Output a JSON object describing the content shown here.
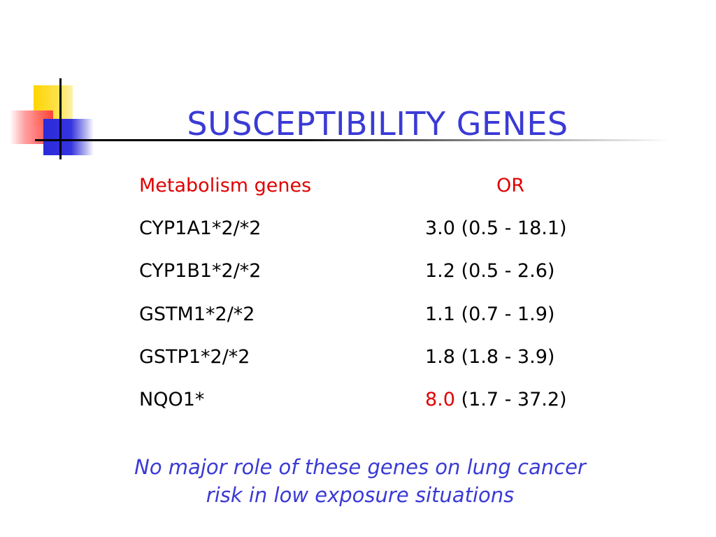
{
  "title": "SUSCEPTIBILITY GENES",
  "header": {
    "gene": "Metabolism genes",
    "or": "OR"
  },
  "rows": [
    {
      "gene": "CYP1A1*2/*2",
      "or_value": "3.0",
      "or_ci": "(0.5 - 18.1)"
    },
    {
      "gene": "CYP1B1*2/*2",
      "or_value": "1.2",
      "or_ci": "(0.5 - 2.6)"
    },
    {
      "gene": "GSTM1*2/*2",
      "or_value": "1.1",
      "or_ci": "(0.7 - 1.9)"
    },
    {
      "gene": "GSTP1*2/*2",
      "or_value": "1.8",
      "or_ci": "(1.8 - 3.9)"
    },
    {
      "gene": "NQO1*",
      "or_value": "8.0",
      "or_ci": "(1.7 - 37.2)",
      "highlight": true
    }
  ],
  "conclusion": {
    "line1": "No major role of these genes on lung cancer",
    "line2": "risk in low exposure situations"
  },
  "colors": {
    "title": "#3a3ad6",
    "header": "#e00000",
    "highlight": "#e00000"
  }
}
